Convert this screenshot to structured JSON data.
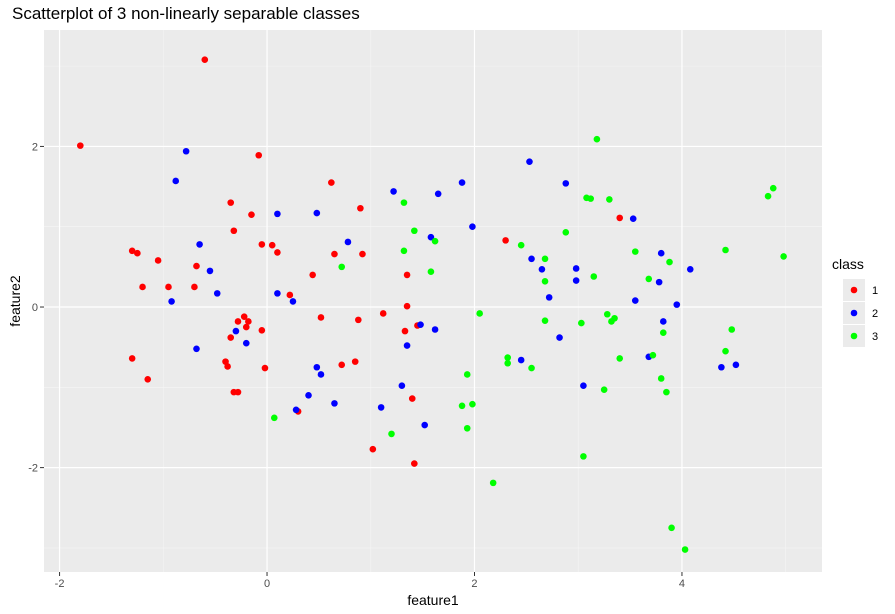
{
  "chart_data": {
    "type": "scatter",
    "title": "Scatterplot of 3 non-linearly separable classes",
    "xlabel": "feature1",
    "ylabel": "feature2",
    "xlim": [
      -2.15,
      5.35
    ],
    "ylim": [
      -3.3,
      3.45
    ],
    "x_ticks": [
      -2,
      0,
      2,
      4
    ],
    "y_ticks": [
      -2,
      0,
      2
    ],
    "x_tick_labels": [
      "-2",
      "0",
      "2",
      "4"
    ],
    "y_tick_labels": [
      "-2",
      "0",
      "2"
    ],
    "grid": true,
    "legend": {
      "title": "class",
      "placement": "right"
    },
    "series": [
      {
        "name": "1",
        "color": "#FF0000",
        "points": [
          [
            -1.8,
            2.01
          ],
          [
            -0.6,
            3.08
          ],
          [
            -1.3,
            0.7
          ],
          [
            -1.25,
            0.67
          ],
          [
            -1.2,
            0.25
          ],
          [
            -1.05,
            0.58
          ],
          [
            -0.95,
            0.25
          ],
          [
            -0.7,
            0.25
          ],
          [
            -0.68,
            0.51
          ],
          [
            -1.3,
            -0.64
          ],
          [
            -1.15,
            -0.9
          ],
          [
            -0.35,
            1.3
          ],
          [
            -0.15,
            1.15
          ],
          [
            -0.08,
            1.89
          ],
          [
            -0.05,
            0.78
          ],
          [
            0.05,
            0.77
          ],
          [
            0.1,
            0.68
          ],
          [
            -0.32,
            0.95
          ],
          [
            -0.35,
            -0.38
          ],
          [
            -0.28,
            -0.18
          ],
          [
            -0.22,
            -0.12
          ],
          [
            -0.2,
            -0.25
          ],
          [
            -0.18,
            -0.18
          ],
          [
            -0.05,
            -0.29
          ],
          [
            -0.4,
            -0.68
          ],
          [
            -0.38,
            -0.74
          ],
          [
            -0.32,
            -1.06
          ],
          [
            -0.28,
            -1.06
          ],
          [
            -0.02,
            -0.76
          ],
          [
            0.22,
            0.15
          ],
          [
            0.3,
            -1.3
          ],
          [
            0.44,
            0.4
          ],
          [
            0.52,
            -0.13
          ],
          [
            0.62,
            1.55
          ],
          [
            0.65,
            0.66
          ],
          [
            0.72,
            -0.72
          ],
          [
            0.85,
            -0.68
          ],
          [
            0.88,
            -0.16
          ],
          [
            0.9,
            1.23
          ],
          [
            0.92,
            0.66
          ],
          [
            1.02,
            -1.77
          ],
          [
            1.12,
            -0.08
          ],
          [
            1.33,
            -0.3
          ],
          [
            1.35,
            0.01
          ],
          [
            1.35,
            0.4
          ],
          [
            1.4,
            -1.14
          ],
          [
            1.42,
            -1.95
          ],
          [
            1.45,
            -0.23
          ],
          [
            2.3,
            0.83
          ],
          [
            3.4,
            1.11
          ]
        ]
      },
      {
        "name": "2",
        "color": "#0000FF",
        "points": [
          [
            -0.78,
            1.94
          ],
          [
            -0.88,
            1.57
          ],
          [
            -0.92,
            0.07
          ],
          [
            -0.65,
            0.78
          ],
          [
            -0.55,
            0.45
          ],
          [
            -0.48,
            0.17
          ],
          [
            -0.68,
            -0.52
          ],
          [
            -0.3,
            -0.3
          ],
          [
            -0.2,
            -0.45
          ],
          [
            0.1,
            1.16
          ],
          [
            0.1,
            0.17
          ],
          [
            0.25,
            0.07
          ],
          [
            0.28,
            -1.28
          ],
          [
            0.48,
            1.17
          ],
          [
            0.48,
            -0.75
          ],
          [
            0.52,
            -0.84
          ],
          [
            0.4,
            -1.1
          ],
          [
            0.65,
            -1.2
          ],
          [
            0.78,
            0.81
          ],
          [
            1.1,
            -1.25
          ],
          [
            1.22,
            1.44
          ],
          [
            1.3,
            -0.98
          ],
          [
            1.35,
            -0.48
          ],
          [
            1.48,
            -0.22
          ],
          [
            1.52,
            -1.47
          ],
          [
            1.58,
            0.87
          ],
          [
            1.62,
            -0.28
          ],
          [
            1.65,
            1.41
          ],
          [
            1.88,
            1.55
          ],
          [
            1.98,
            1.0
          ],
          [
            2.45,
            -0.66
          ],
          [
            2.53,
            1.81
          ],
          [
            2.55,
            0.6
          ],
          [
            2.65,
            0.47
          ],
          [
            2.72,
            0.12
          ],
          [
            2.82,
            -0.38
          ],
          [
            2.88,
            1.54
          ],
          [
            2.98,
            0.48
          ],
          [
            2.98,
            0.33
          ],
          [
            3.05,
            -0.98
          ],
          [
            3.53,
            1.1
          ],
          [
            3.55,
            0.08
          ],
          [
            3.68,
            -0.62
          ],
          [
            3.78,
            0.31
          ],
          [
            3.8,
            0.67
          ],
          [
            3.82,
            -0.18
          ],
          [
            3.95,
            0.03
          ],
          [
            4.08,
            0.47
          ],
          [
            4.38,
            -0.75
          ],
          [
            4.52,
            -0.72
          ]
        ]
      },
      {
        "name": "3",
        "color": "#00FF00",
        "points": [
          [
            0.07,
            -1.38
          ],
          [
            0.72,
            0.5
          ],
          [
            1.2,
            -1.58
          ],
          [
            1.32,
            0.7
          ],
          [
            1.32,
            1.3
          ],
          [
            1.42,
            0.95
          ],
          [
            1.58,
            0.44
          ],
          [
            1.62,
            0.82
          ],
          [
            1.88,
            -1.23
          ],
          [
            1.93,
            -0.84
          ],
          [
            1.93,
            -1.51
          ],
          [
            1.98,
            -1.21
          ],
          [
            2.05,
            -0.08
          ],
          [
            2.18,
            -2.19
          ],
          [
            2.32,
            -0.63
          ],
          [
            2.32,
            -0.7
          ],
          [
            2.45,
            0.77
          ],
          [
            2.55,
            -0.76
          ],
          [
            2.68,
            0.6
          ],
          [
            2.68,
            0.32
          ],
          [
            2.68,
            -0.17
          ],
          [
            2.88,
            0.93
          ],
          [
            3.03,
            -0.2
          ],
          [
            3.05,
            -1.86
          ],
          [
            3.08,
            1.36
          ],
          [
            3.12,
            1.35
          ],
          [
            3.15,
            0.38
          ],
          [
            3.18,
            2.09
          ],
          [
            3.25,
            -1.03
          ],
          [
            3.28,
            -0.09
          ],
          [
            3.3,
            1.34
          ],
          [
            3.32,
            -0.18
          ],
          [
            3.35,
            -0.14
          ],
          [
            3.4,
            -0.64
          ],
          [
            3.55,
            0.69
          ],
          [
            3.68,
            0.35
          ],
          [
            3.72,
            -0.6
          ],
          [
            3.8,
            -0.89
          ],
          [
            3.82,
            -0.32
          ],
          [
            3.85,
            -1.06
          ],
          [
            3.88,
            0.56
          ],
          [
            3.9,
            -2.75
          ],
          [
            4.03,
            -3.02
          ],
          [
            4.42,
            0.71
          ],
          [
            4.42,
            -0.55
          ],
          [
            4.48,
            -0.28
          ],
          [
            4.83,
            1.38
          ],
          [
            4.88,
            1.48
          ],
          [
            4.98,
            0.63
          ]
        ]
      }
    ]
  }
}
